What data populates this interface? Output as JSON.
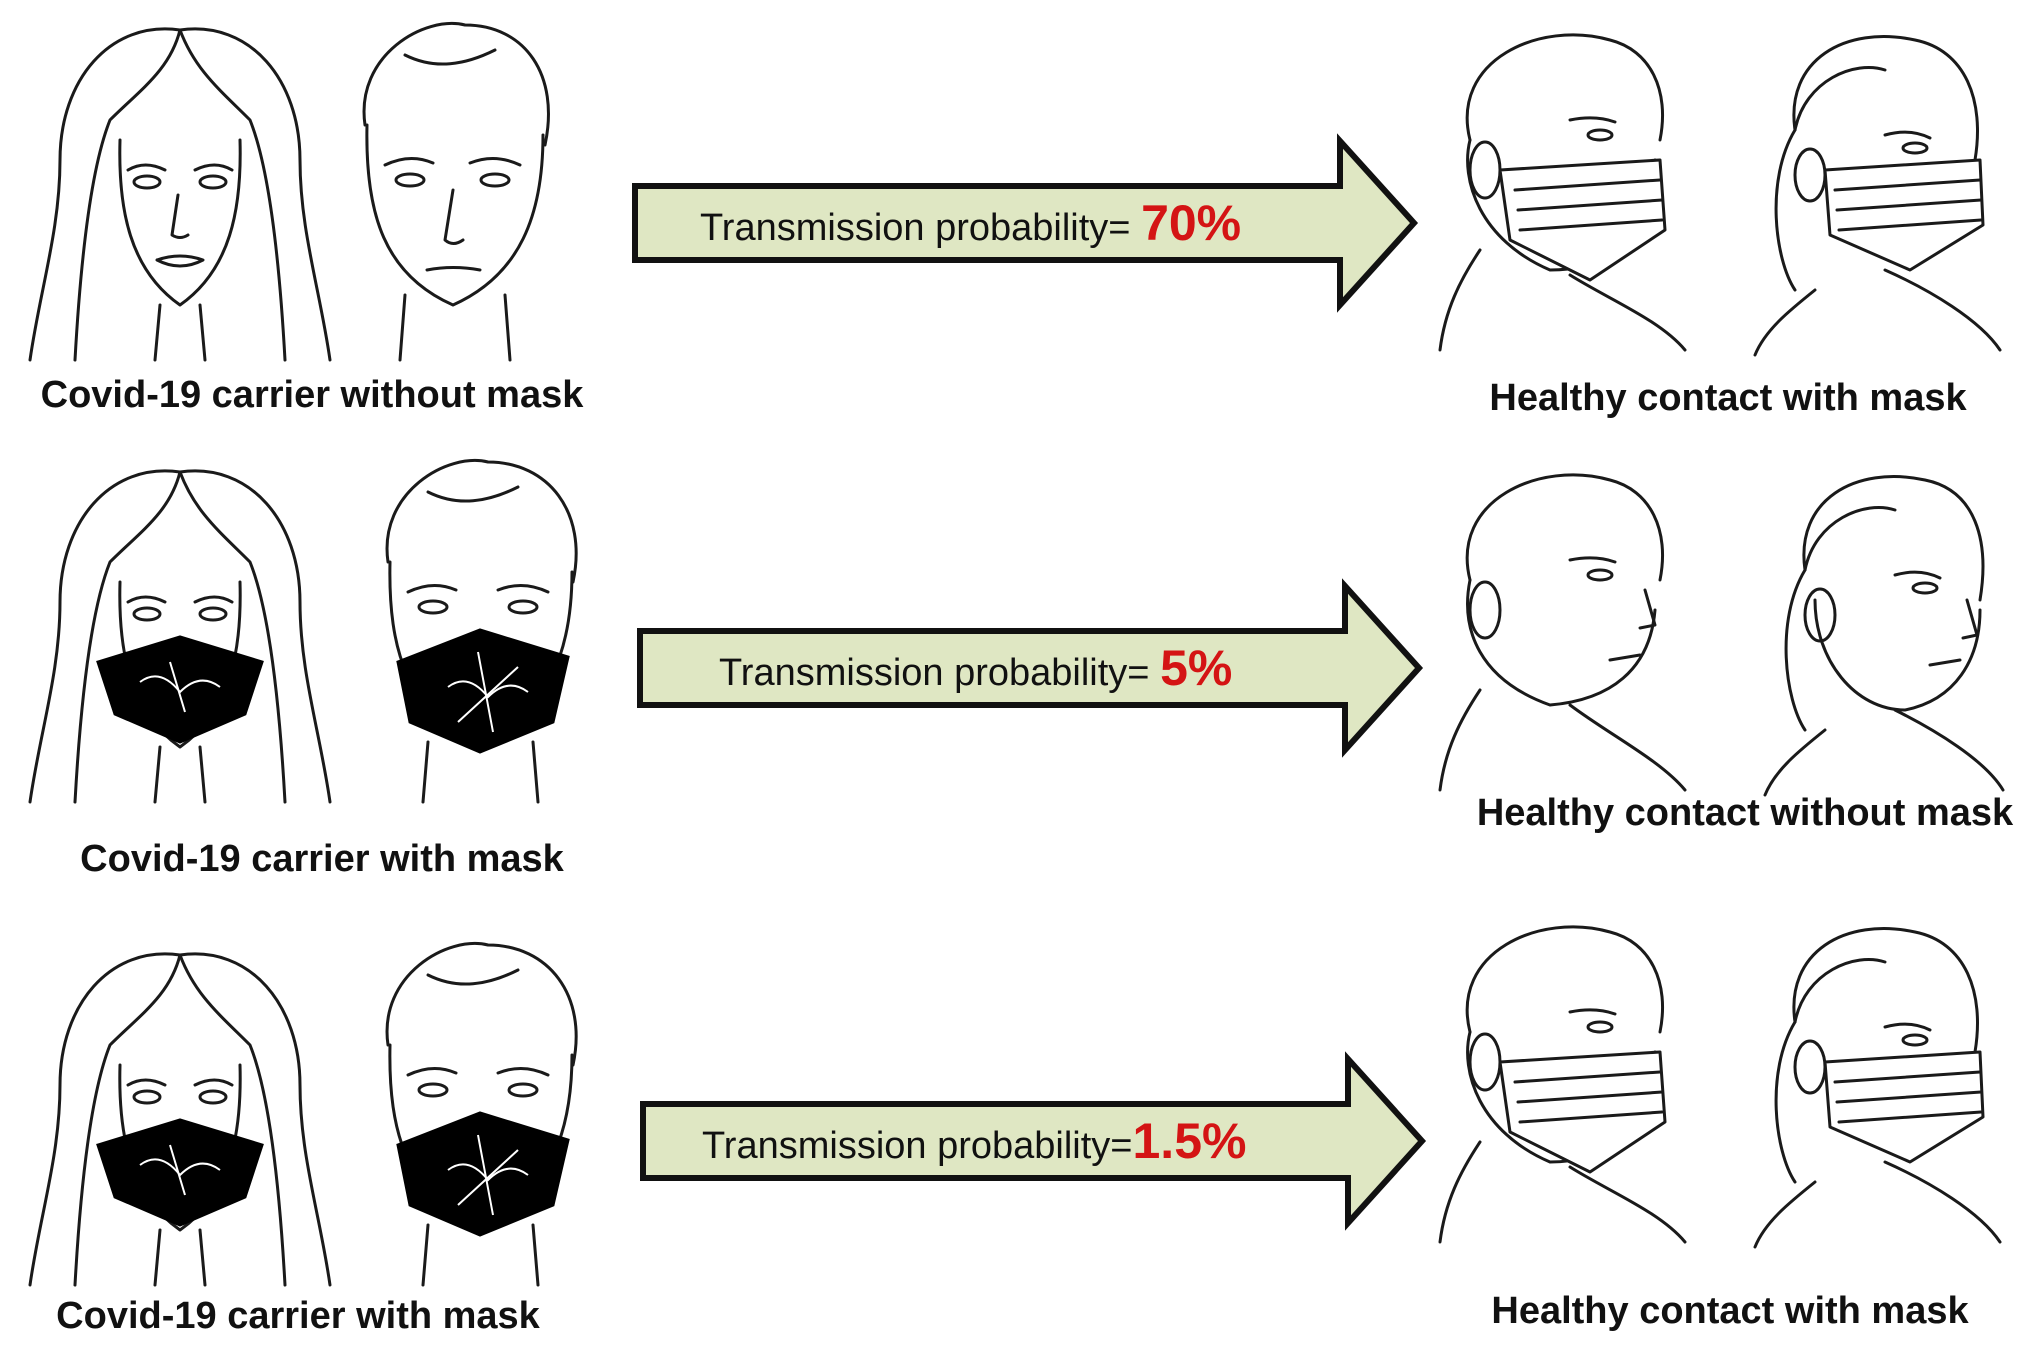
{
  "colors": {
    "arrow_fill": "#dfe7c3",
    "arrow_stroke": "#111111",
    "percentage": "#d41414",
    "line_art": "#1a1a1a",
    "carrier_mask": "#000000",
    "contact_mask": "#ffffff"
  },
  "rows": [
    {
      "carrier_caption": "Covid-19 carrier without mask",
      "contact_caption": "Healthy contact with mask",
      "arrow_label": "Transmission probability=",
      "arrow_value": "70%",
      "carrier_masked": false,
      "contact_masked": true
    },
    {
      "carrier_caption": "Covid-19 carrier with mask",
      "contact_caption": "Healthy contact without mask",
      "arrow_label": "Transmission probability=",
      "arrow_value": "5%",
      "carrier_masked": true,
      "contact_masked": false
    },
    {
      "carrier_caption": "Covid-19 carrier with mask",
      "contact_caption": "Healthy contact with mask",
      "arrow_label": "Transmission probability=",
      "arrow_value": "1.5%",
      "carrier_masked": true,
      "contact_masked": true
    }
  ]
}
